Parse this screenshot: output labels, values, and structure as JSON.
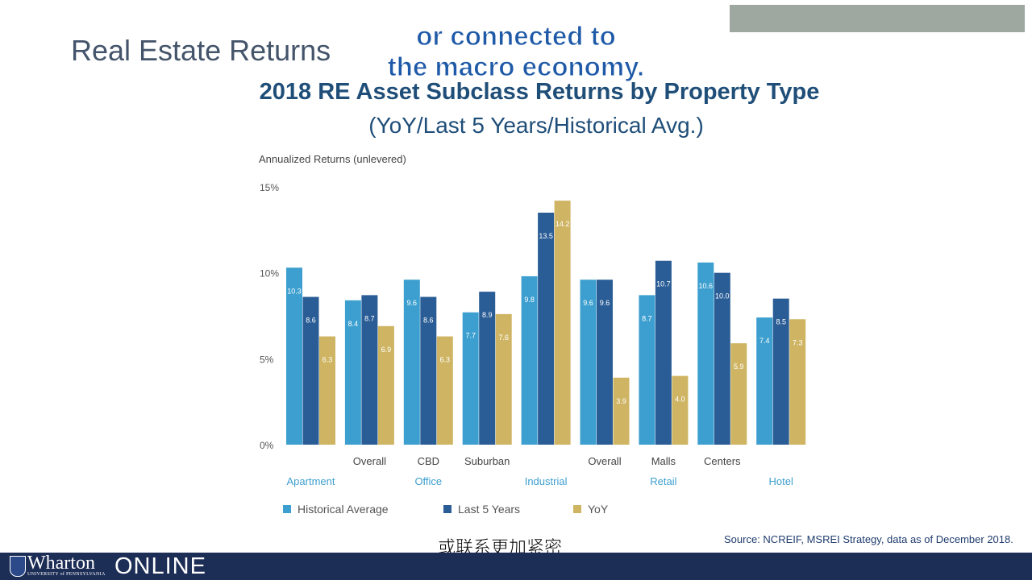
{
  "slide": {
    "section_title": "Real Estate Returns",
    "caption_en_line1": "or connected to",
    "caption_en_line2": "the macro economy.",
    "caption_zh": "或联系更加紧密",
    "source": "Source: NCREIF, MSREI Strategy, data as of December 2018.",
    "logo_name": "Wharton",
    "logo_sub": "UNIVERSITY of PENNSYLVANIA",
    "logo_online": "ONLINE"
  },
  "chart_data": {
    "type": "bar",
    "title": "2018 RE Asset Subclass Returns by Property Type",
    "subtitle": "(YoY/Last 5 Years/Historical Avg.)",
    "ylabel": "Annualized Returns (unlevered)",
    "ylim": [
      0,
      15
    ],
    "yticks": [
      "0%",
      "5%",
      "10%",
      "15%"
    ],
    "grid": false,
    "legend_position": "bottom",
    "categories": [
      "",
      "Overall",
      "CBD",
      "Suburban",
      "",
      "Overall",
      "Malls",
      "Centers",
      ""
    ],
    "groups": [
      {
        "label": "Apartment",
        "start": 0,
        "end": 0
      },
      {
        "label": "Office",
        "start": 1,
        "end": 3
      },
      {
        "label": "Industrial",
        "start": 4,
        "end": 4
      },
      {
        "label": "Retail",
        "start": 5,
        "end": 7
      },
      {
        "label": "Hotel",
        "start": 8,
        "end": 8
      }
    ],
    "series": [
      {
        "name": "Historical Average",
        "color": "#3d9fcf",
        "values": [
          10.3,
          8.4,
          9.6,
          7.7,
          9.8,
          9.6,
          8.7,
          10.6,
          7.4
        ],
        "labels": [
          "10.3",
          "8.4",
          "9.6",
          "7.7",
          "9.8",
          "9.6",
          "8.7",
          "10.6",
          "7.4"
        ]
      },
      {
        "name": "Last 5 Years",
        "color": "#2a5d96",
        "values": [
          8.6,
          8.7,
          8.6,
          8.9,
          13.5,
          9.6,
          10.7,
          10.0,
          8.5
        ],
        "labels": [
          "8.6",
          "8.7",
          "8.6",
          "8.9",
          "13.5",
          "9.6",
          "10.7",
          "10.0",
          "8.5"
        ]
      },
      {
        "name": "YoY",
        "color": "#cfb563",
        "values": [
          6.3,
          6.9,
          6.3,
          7.6,
          14.2,
          3.9,
          4.0,
          5.9,
          7.3
        ],
        "labels": [
          "6.3",
          "6.9",
          "6.3",
          "7.6",
          "14.2",
          "3.9",
          "4.0",
          "5.9",
          "7.3"
        ]
      }
    ]
  }
}
